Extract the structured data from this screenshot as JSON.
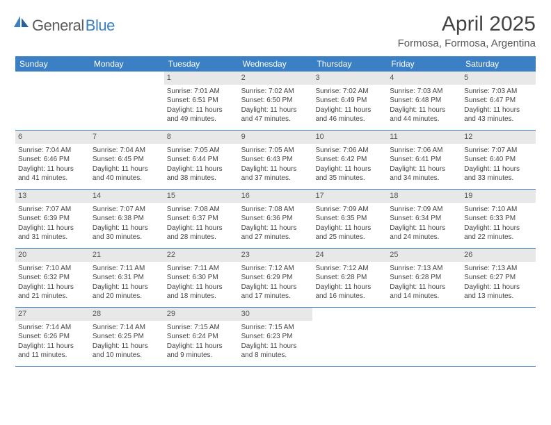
{
  "logo": {
    "word1": "General",
    "word2": "Blue"
  },
  "title": "April 2025",
  "location": "Formosa, Formosa, Argentina",
  "colors": {
    "header_bg": "#3b7fc4",
    "header_text": "#ffffff",
    "daynum_bg": "#e8e8e8",
    "text": "#444444",
    "rule": "#3b7fc4",
    "page_bg": "#ffffff"
  },
  "dayNames": [
    "Sunday",
    "Monday",
    "Tuesday",
    "Wednesday",
    "Thursday",
    "Friday",
    "Saturday"
  ],
  "labels": {
    "sunrise": "Sunrise:",
    "sunset": "Sunset:",
    "daylight": "Daylight:"
  },
  "days": [
    {
      "n": 1,
      "sr": "7:01 AM",
      "ss": "6:51 PM",
      "dl": "11 hours and 49 minutes."
    },
    {
      "n": 2,
      "sr": "7:02 AM",
      "ss": "6:50 PM",
      "dl": "11 hours and 47 minutes."
    },
    {
      "n": 3,
      "sr": "7:02 AM",
      "ss": "6:49 PM",
      "dl": "11 hours and 46 minutes."
    },
    {
      "n": 4,
      "sr": "7:03 AM",
      "ss": "6:48 PM",
      "dl": "11 hours and 44 minutes."
    },
    {
      "n": 5,
      "sr": "7:03 AM",
      "ss": "6:47 PM",
      "dl": "11 hours and 43 minutes."
    },
    {
      "n": 6,
      "sr": "7:04 AM",
      "ss": "6:46 PM",
      "dl": "11 hours and 41 minutes."
    },
    {
      "n": 7,
      "sr": "7:04 AM",
      "ss": "6:45 PM",
      "dl": "11 hours and 40 minutes."
    },
    {
      "n": 8,
      "sr": "7:05 AM",
      "ss": "6:44 PM",
      "dl": "11 hours and 38 minutes."
    },
    {
      "n": 9,
      "sr": "7:05 AM",
      "ss": "6:43 PM",
      "dl": "11 hours and 37 minutes."
    },
    {
      "n": 10,
      "sr": "7:06 AM",
      "ss": "6:42 PM",
      "dl": "11 hours and 35 minutes."
    },
    {
      "n": 11,
      "sr": "7:06 AM",
      "ss": "6:41 PM",
      "dl": "11 hours and 34 minutes."
    },
    {
      "n": 12,
      "sr": "7:07 AM",
      "ss": "6:40 PM",
      "dl": "11 hours and 33 minutes."
    },
    {
      "n": 13,
      "sr": "7:07 AM",
      "ss": "6:39 PM",
      "dl": "11 hours and 31 minutes."
    },
    {
      "n": 14,
      "sr": "7:07 AM",
      "ss": "6:38 PM",
      "dl": "11 hours and 30 minutes."
    },
    {
      "n": 15,
      "sr": "7:08 AM",
      "ss": "6:37 PM",
      "dl": "11 hours and 28 minutes."
    },
    {
      "n": 16,
      "sr": "7:08 AM",
      "ss": "6:36 PM",
      "dl": "11 hours and 27 minutes."
    },
    {
      "n": 17,
      "sr": "7:09 AM",
      "ss": "6:35 PM",
      "dl": "11 hours and 25 minutes."
    },
    {
      "n": 18,
      "sr": "7:09 AM",
      "ss": "6:34 PM",
      "dl": "11 hours and 24 minutes."
    },
    {
      "n": 19,
      "sr": "7:10 AM",
      "ss": "6:33 PM",
      "dl": "11 hours and 22 minutes."
    },
    {
      "n": 20,
      "sr": "7:10 AM",
      "ss": "6:32 PM",
      "dl": "11 hours and 21 minutes."
    },
    {
      "n": 21,
      "sr": "7:11 AM",
      "ss": "6:31 PM",
      "dl": "11 hours and 20 minutes."
    },
    {
      "n": 22,
      "sr": "7:11 AM",
      "ss": "6:30 PM",
      "dl": "11 hours and 18 minutes."
    },
    {
      "n": 23,
      "sr": "7:12 AM",
      "ss": "6:29 PM",
      "dl": "11 hours and 17 minutes."
    },
    {
      "n": 24,
      "sr": "7:12 AM",
      "ss": "6:28 PM",
      "dl": "11 hours and 16 minutes."
    },
    {
      "n": 25,
      "sr": "7:13 AM",
      "ss": "6:28 PM",
      "dl": "11 hours and 14 minutes."
    },
    {
      "n": 26,
      "sr": "7:13 AM",
      "ss": "6:27 PM",
      "dl": "11 hours and 13 minutes."
    },
    {
      "n": 27,
      "sr": "7:14 AM",
      "ss": "6:26 PM",
      "dl": "11 hours and 11 minutes."
    },
    {
      "n": 28,
      "sr": "7:14 AM",
      "ss": "6:25 PM",
      "dl": "11 hours and 10 minutes."
    },
    {
      "n": 29,
      "sr": "7:15 AM",
      "ss": "6:24 PM",
      "dl": "11 hours and 9 minutes."
    },
    {
      "n": 30,
      "sr": "7:15 AM",
      "ss": "6:23 PM",
      "dl": "11 hours and 8 minutes."
    }
  ],
  "grid": {
    "leadingBlanks": 2,
    "trailingBlanks": 3,
    "columns": 7
  },
  "typography": {
    "title_fontsize": 30,
    "location_fontsize": 15,
    "dayheader_fontsize": 12,
    "daynum_fontsize": 11,
    "body_fontsize": 10
  }
}
